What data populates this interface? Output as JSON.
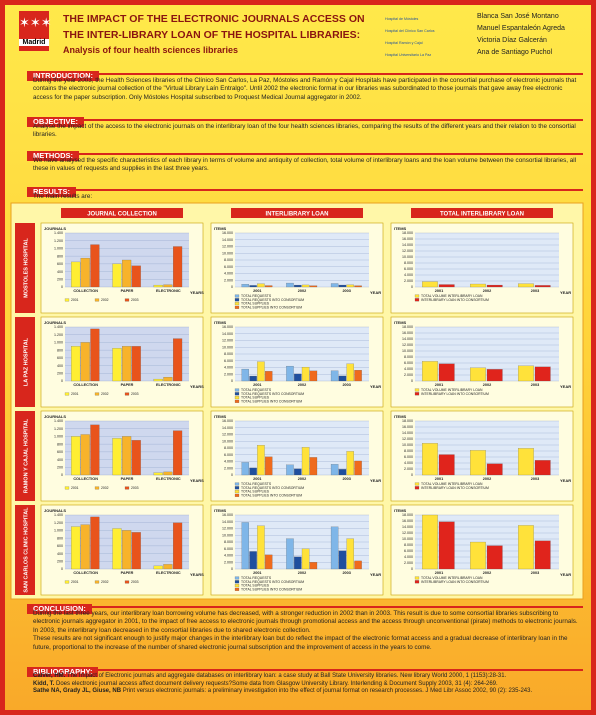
{
  "header": {
    "logo": "Madrid",
    "title_lines": [
      "THE IMPACT OF THE ELECTRONIC JOURNALS ACCESS ON",
      "THE INTER-LIBRARY LOAN OF THE HOSPITAL LIBRARIES:"
    ],
    "subtitle": "Analysis of four health sciences libraries",
    "hospitals": [
      "Hospital de Móstoles",
      "Hospital del Clínico San Carlos",
      "Hospital Ramón y Cajal",
      "Hospital Universitario La Paz"
    ],
    "authors": [
      "Blanca San José Montano",
      "Manuel Espantaleón Agreda",
      "Victoria Díaz Galcerán",
      "Ana de Santiago Puchol"
    ]
  },
  "introduction": {
    "label": "INTRODUCTION:",
    "text": "During the year 2003, the Health Sciences libraries of the Clínico San Carlos, La Paz, Móstoles and Ramón y Cajal Hospitals have participated in the consortial purchase of electronic journals that contains the electronic journal collection of the \"Virtual Library Laín Entralgo\". Until 2002 the electronic format in our libraries was subordinated to those journals that gave away free electronic access for the paper subscription. Only Móstoles Hospital subscribed to Proquest Medical Journal aggregator in 2002."
  },
  "objective": {
    "label": "OBJECTIVE:",
    "text": "Analyse the impact of the access to the electronic journals on the interlibrary loan of the four health sciences libraries, comparing the results of the different years and their relation to the consortial libraries."
  },
  "methods": {
    "label": "METHODS:",
    "text": "We have analysed the specific characteristics of each library in terms of volume and antiquity of collection, total volume of interlibrary loans and the loan volume between the consortial libraries, all these in values of requests and supplies in the last three years."
  },
  "results": {
    "label": "RESULTS:",
    "text": "The main results are:"
  },
  "charts": {
    "columns": [
      {
        "title": "JOURNAL COLLECTION",
        "y_label": "JOURNALS",
        "x_label": "YEARS",
        "categories": [
          "COLLECTION",
          "PAPER",
          "ELECTRONIC"
        ],
        "series": [
          {
            "name": "2001",
            "color": "#ffee33"
          },
          {
            "name": "2002",
            "color": "#f7b32b"
          },
          {
            "name": "2003",
            "color": "#e8541c"
          }
        ],
        "ylim": [
          0,
          1400
        ],
        "yticks": [
          0,
          200,
          400,
          600,
          800,
          {
            "value": 1000,
            "label": "1.000"
          },
          {
            "value": 1200,
            "label": "1.200"
          },
          {
            "value": 1400,
            "label": "1.400"
          }
        ]
      },
      {
        "title": "INTERLIBRARY LOAN",
        "y_label": "ITEMS",
        "x_label": "YEAR",
        "categories": [
          "2001",
          "2002",
          "2003"
        ],
        "series": [
          {
            "name": "TOTAL REQUESTS",
            "color": "#7fb6e8"
          },
          {
            "name": "TOTAL REQUESTS INTO CONSORTIUM",
            "color": "#1f4f9e"
          },
          {
            "name": "TOTAL SUPPLIES",
            "color": "#ffe23a"
          },
          {
            "name": "TOTAL SUPPLIES INTO CONSORTIUM",
            "color": "#ef6a1c"
          }
        ],
        "ylim": [
          0,
          16000
        ],
        "yticks": [
          0,
          {
            "value": 2000,
            "label": "2.000"
          },
          {
            "value": 4000,
            "label": "4.000"
          },
          {
            "value": 6000,
            "label": "6.000"
          },
          {
            "value": 8000,
            "label": "8.000"
          },
          {
            "value": 10000,
            "label": "10.000"
          },
          {
            "value": 12000,
            "label": "12.000"
          },
          {
            "value": 14000,
            "label": "14.000"
          },
          {
            "value": 16000,
            "label": "16.000"
          }
        ]
      },
      {
        "title": "TOTAL INTERLIBRARY LOAN",
        "y_label": "ITEMS",
        "x_label": "YEAR",
        "categories": [
          "2001",
          "2002",
          "2003"
        ],
        "series": [
          {
            "name": "TOTAL VOLUME INTERLIBRARY LOAN",
            "color": "#ffe23a"
          },
          {
            "name": "INTERLIBRARY LOAN INTO CONSORTIUM",
            "color": "#e0241c"
          }
        ],
        "ylim": [
          0,
          18000
        ],
        "yticks": [
          0,
          {
            "value": 2000,
            "label": "2.000"
          },
          {
            "value": 4000,
            "label": "4.000"
          },
          {
            "value": 6000,
            "label": "6.000"
          },
          {
            "value": 8000,
            "label": "8.000"
          },
          {
            "value": 10000,
            "label": "10.000"
          },
          {
            "value": 12000,
            "label": "12.000"
          },
          {
            "value": 14000,
            "label": "14.000"
          },
          {
            "value": 16000,
            "label": "16.000"
          },
          {
            "value": 18000,
            "label": "18.000"
          }
        ]
      }
    ],
    "rows": [
      {
        "name": "MOSTOLES HOSPITAL",
        "values": [
          [
            [
              650,
              600,
              50
            ],
            [
              750,
              700,
              60
            ],
            [
              1100,
              550,
              1050
            ]
          ],
          [
            [
              836,
              1172,
              1041
            ],
            [
              464,
              572,
              584
            ],
            [
              972,
              610,
              650
            ],
            [
              433,
              397,
              395
            ]
          ],
          [
            [
              1808,
              998,
              1124
            ],
            [
              824,
              650,
              531
            ]
          ]
        ]
      },
      {
        "name": "LA PAZ HOSPITAL",
        "values": [
          [
            [
              900,
              850,
              50
            ],
            [
              1000,
              900,
              100
            ],
            [
              1350,
              900,
              1100
            ]
          ],
          [
            [
              3537,
              4419,
              3052
            ],
            [
              1470,
              2100,
              1500
            ],
            [
              5736,
              4120,
              5100
            ],
            [
              2900,
              3000,
              3216
            ]
          ],
          [
            [
              6537,
              4419,
              5052
            ],
            [
              5736,
              3886,
              4716
            ]
          ]
        ]
      },
      {
        "name": "RAMON Y CAJAL HOSPITAL",
        "values": [
          [
            [
              1000,
              950,
              60
            ],
            [
              1050,
              1000,
              80
            ],
            [
              1300,
              900,
              1150
            ]
          ],
          [
            [
              3744,
              3000,
              3180
            ],
            [
              2100,
              1800,
              1700
            ],
            [
              8828,
              8214,
              7000
            ],
            [
              5400,
              5214,
              4160
            ]
          ],
          [
            [
              10572,
              8214,
              8886
            ],
            [
              6817,
              3749,
              4893
            ]
          ]
        ]
      },
      {
        "name": "SAN CARLOS CLINIC HOSPITAL",
        "values": [
          [
            [
              1100,
              1050,
              80
            ],
            [
              1150,
              1000,
              120
            ],
            [
              1350,
              950,
              1200
            ]
          ],
          [
            [
              13800,
              9000,
              12500
            ],
            [
              5200,
              3600,
              5400
            ],
            [
              12800,
              6000,
              9000
            ],
            [
              4200,
              2000,
              2400
            ]
          ],
          [
            [
              17998,
              8991,
              14531
            ],
            [
              15741,
              7781,
              9397
            ]
          ]
        ]
      }
    ]
  },
  "conclusion": {
    "label": "CONCLUSION:",
    "paragraphs": [
      "During the last three years, our interlibrary loan borrowing volume has decreased, with a stronger reduction in 2002 than in 2003. This result is due to some consortial libraries subscribing to electronic journals aggregator in 2001, to the impact of free access to electronic journals through promotional access and the access through unconventional (pirate) methods to electronic journals. In 2003, the interlibrary loan decreased in the consortial libraries due to shared electronic collection.",
      "These results are not significant enough to justify major changes in the interlibrary loan but do reflect the impact of the electronic format access and a gradual decrease of interlibrary loan in the future, proportional to the increase of the number of shared electronic journal subscription and the improvement of access in the years to come."
    ]
  },
  "bibliography": {
    "label": "BIBLIOGRAPHY:",
    "entries": [
      {
        "author": "Calver, HM.",
        "text": "The Impact of Electronic journals and aggregate databases on interlibrary loan: a case study at Ball State University libraries. New library World 2000, 1 (1153):28-31."
      },
      {
        "author": "Kidd, T.",
        "text": "Does electronic journal access affect document delivery requests?Some data from Glasgow University Library. Interlending & Document Supply 2003, 31 (4): 264-269."
      },
      {
        "author": "Sathe NA, Grady JL, Giuse, NB",
        "text": "Print versus electronic journals: a preliminary investigation into the effect of journal format on research processes. J Med Libr Assoc 2002, 90 (2): 235-243."
      }
    ]
  }
}
